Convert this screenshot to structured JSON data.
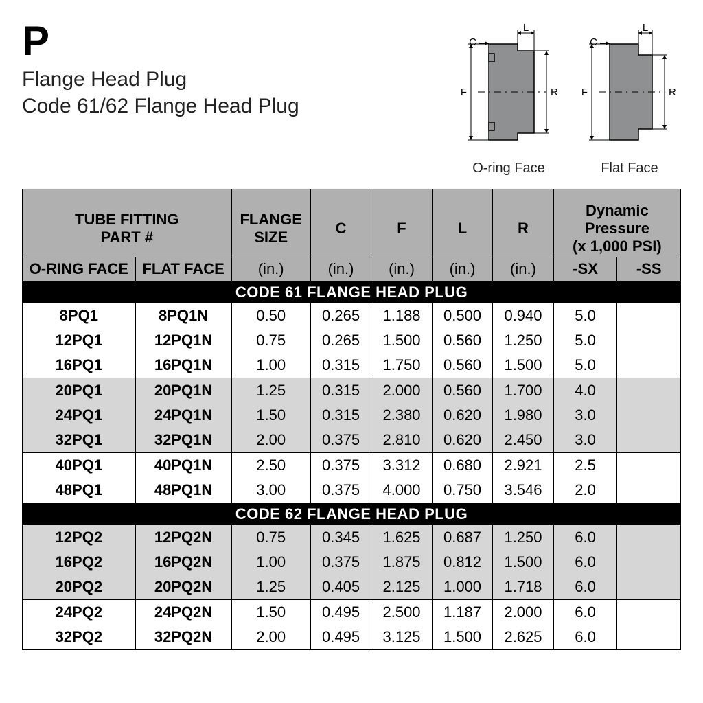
{
  "header": {
    "letter": "P",
    "line1": "Flange Head Plug",
    "line2": "Code 61/62 Flange Head Plug"
  },
  "diagrams": {
    "items": [
      {
        "label": "O-ring Face",
        "type": "oring",
        "fill": "#8f9091",
        "stroke": "#000000",
        "text": "#000000"
      },
      {
        "label": "Flat Face",
        "type": "flat",
        "fill": "#8f9091",
        "stroke": "#000000",
        "text": "#000000"
      }
    ],
    "dim_labels": {
      "C": "C",
      "F": "F",
      "L": "L",
      "R": "R"
    }
  },
  "table": {
    "headers": {
      "tube_fitting": "TUBE FITTING\nPART #",
      "oring_face": "O-RING FACE",
      "flat_face": "FLAT FACE",
      "flange_size": "FLANGE\nSIZE",
      "flange_size_unit": "(in.)",
      "C": "C",
      "C_unit": "(in.)",
      "F": "F",
      "F_unit": "(in.)",
      "L": "L",
      "L_unit": "(in.)",
      "R": "R",
      "R_unit": "(in.)",
      "dyn": "Dynamic\nPressure\n(x 1,000 PSI)",
      "sx": "-SX",
      "ss": "-SS"
    },
    "header_bg": "#b0b0b0",
    "section_bg": "#000000",
    "section_fg": "#ffffff",
    "shade_bg": "#d6d6d6",
    "border": "#000000",
    "sections": [
      {
        "title": "CODE 61 FLANGE HEAD PLUG",
        "groups": [
          {
            "shade": false,
            "rows": [
              {
                "oring": "8PQ1",
                "flat": "8PQ1N",
                "size": "0.50",
                "C": "0.265",
                "F": "1.188",
                "L": "0.500",
                "R": "0.940",
                "SX": "5.0",
                "SS": ""
              },
              {
                "oring": "12PQ1",
                "flat": "12PQ1N",
                "size": "0.75",
                "C": "0.265",
                "F": "1.500",
                "L": "0.560",
                "R": "1.250",
                "SX": "5.0",
                "SS": ""
              },
              {
                "oring": "16PQ1",
                "flat": "16PQ1N",
                "size": "1.00",
                "C": "0.315",
                "F": "1.750",
                "L": "0.560",
                "R": "1.500",
                "SX": "5.0",
                "SS": ""
              }
            ]
          },
          {
            "shade": true,
            "rows": [
              {
                "oring": "20PQ1",
                "flat": "20PQ1N",
                "size": "1.25",
                "C": "0.315",
                "F": "2.000",
                "L": "0.560",
                "R": "1.700",
                "SX": "4.0",
                "SS": ""
              },
              {
                "oring": "24PQ1",
                "flat": "24PQ1N",
                "size": "1.50",
                "C": "0.315",
                "F": "2.380",
                "L": "0.620",
                "R": "1.980",
                "SX": "3.0",
                "SS": ""
              },
              {
                "oring": "32PQ1",
                "flat": "32PQ1N",
                "size": "2.00",
                "C": "0.375",
                "F": "2.810",
                "L": "0.620",
                "R": "2.450",
                "SX": "3.0",
                "SS": ""
              }
            ]
          },
          {
            "shade": false,
            "rows": [
              {
                "oring": "40PQ1",
                "flat": "40PQ1N",
                "size": "2.50",
                "C": "0.375",
                "F": "3.312",
                "L": "0.680",
                "R": "2.921",
                "SX": "2.5",
                "SS": ""
              },
              {
                "oring": "48PQ1",
                "flat": "48PQ1N",
                "size": "3.00",
                "C": "0.375",
                "F": "4.000",
                "L": "0.750",
                "R": "3.546",
                "SX": "2.0",
                "SS": ""
              }
            ]
          }
        ]
      },
      {
        "title": "CODE 62 FLANGE HEAD PLUG",
        "groups": [
          {
            "shade": true,
            "rows": [
              {
                "oring": "12PQ2",
                "flat": "12PQ2N",
                "size": "0.75",
                "C": "0.345",
                "F": "1.625",
                "L": "0.687",
                "R": "1.250",
                "SX": "6.0",
                "SS": ""
              },
              {
                "oring": "16PQ2",
                "flat": "16PQ2N",
                "size": "1.00",
                "C": "0.375",
                "F": "1.875",
                "L": "0.812",
                "R": "1.500",
                "SX": "6.0",
                "SS": ""
              },
              {
                "oring": "20PQ2",
                "flat": "20PQ2N",
                "size": "1.25",
                "C": "0.405",
                "F": "2.125",
                "L": "1.000",
                "R": "1.718",
                "SX": "6.0",
                "SS": ""
              }
            ]
          },
          {
            "shade": false,
            "rows": [
              {
                "oring": "24PQ2",
                "flat": "24PQ2N",
                "size": "1.50",
                "C": "0.495",
                "F": "2.500",
                "L": "1.187",
                "R": "2.000",
                "SX": "6.0",
                "SS": ""
              },
              {
                "oring": "32PQ2",
                "flat": "32PQ2N",
                "size": "2.00",
                "C": "0.495",
                "F": "3.125",
                "L": "1.500",
                "R": "2.625",
                "SX": "6.0",
                "SS": ""
              }
            ]
          }
        ]
      }
    ]
  }
}
